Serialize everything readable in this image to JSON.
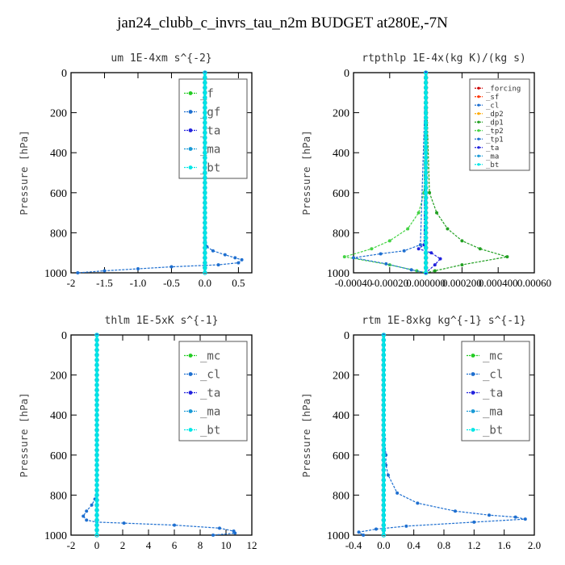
{
  "title": "jan24_clubb_c_invrs_tau_n2m  BUDGET at280E,-7N",
  "colors": {
    "forcing": "#cc0000",
    "sf": "#ff3300",
    "cl": "#1e6fd0",
    "dp2": "#ffaa00",
    "dp1": "#22a022",
    "tp2": "#44d344",
    "tp1": "#1e6fd0",
    "ta": "#2222dd",
    "ma": "#1a9ad6",
    "bt": "#00e6e6",
    "mc": "#22cc22",
    "f": "#22cc22",
    "gf": "#1e6fd0"
  },
  "chart_data": [
    {
      "type": "line",
      "title": "um   1E-4xm s^{-2}",
      "ylabel": "Pressure [hPa]",
      "xlim": [
        -2.0,
        0.7
      ],
      "ylim": [
        1000,
        0
      ],
      "xticks": [
        -2,
        -1.5,
        -1,
        -0.5,
        0,
        0.5
      ],
      "xtick_labels": [
        "-2",
        "-1.5",
        "-1.0",
        "-0.5",
        "0.0",
        "0.5"
      ],
      "yticks": [
        0,
        200,
        400,
        600,
        800,
        1000
      ],
      "legend": {
        "position": "top-right",
        "style": "large"
      },
      "series": [
        {
          "name": "_f",
          "color_key": "f",
          "x": [
            0,
            0
          ],
          "y": [
            0,
            1000
          ]
        },
        {
          "name": "_gf",
          "color_key": "gf",
          "x": [
            0,
            0,
            0.03,
            0.12,
            0.3,
            0.45,
            0.55,
            0.5,
            0.2,
            -0.5,
            -1.0,
            -1.5,
            -1.9
          ],
          "y": [
            0,
            840,
            870,
            890,
            910,
            925,
            935,
            950,
            960,
            970,
            980,
            990,
            1000
          ]
        },
        {
          "name": "_ta",
          "color_key": "ta",
          "x": [
            0,
            0
          ],
          "y": [
            0,
            1000
          ]
        },
        {
          "name": "_ma",
          "color_key": "ma",
          "x": [
            0,
            0
          ],
          "y": [
            0,
            1000
          ]
        },
        {
          "name": "_bt",
          "color_key": "bt",
          "x": [
            0,
            0
          ],
          "y": [
            0,
            1000
          ]
        }
      ]
    },
    {
      "type": "line",
      "title": "rtpthlp   1E-4x(kg K)/(kg s)",
      "ylabel": "Pressure [hPa]",
      "xlim": [
        -0.0004,
        0.0006
      ],
      "ylim": [
        1000,
        0
      ],
      "xticks": [
        -0.0004,
        -0.0002,
        0,
        0.0002,
        0.0004,
        0.0006
      ],
      "xtick_labels": [
        "-0.00040",
        "-0.00020",
        "0.000000",
        "0.000200",
        "0.000400",
        "0.00060"
      ],
      "yticks": [
        0,
        200,
        400,
        600,
        800,
        1000
      ],
      "legend": {
        "position": "top-right",
        "style": "small"
      },
      "series": [
        {
          "name": "_forcing",
          "color_key": "forcing",
          "x": [
            0,
            0
          ],
          "y": [
            0,
            1000
          ]
        },
        {
          "name": "_sf",
          "color_key": "sf",
          "x": [
            0,
            0
          ],
          "y": [
            0,
            1000
          ]
        },
        {
          "name": "_cl",
          "color_key": "cl",
          "x": [
            0,
            0
          ],
          "y": [
            0,
            1000
          ]
        },
        {
          "name": "_dp2",
          "color_key": "dp2",
          "x": [
            0,
            0
          ],
          "y": [
            0,
            1000
          ]
        },
        {
          "name": "_dp1",
          "color_key": "dp1",
          "x": [
            0,
            2e-05,
            6e-05,
            0.00012,
            0.0002,
            0.0003,
            0.00045,
            0.0002,
            5e-05,
            0
          ],
          "y": [
            0,
            600,
            700,
            780,
            840,
            880,
            920,
            960,
            990,
            1000
          ]
        },
        {
          "name": "_tp2",
          "color_key": "tp2",
          "x": [
            0,
            -1e-05,
            -4e-05,
            -0.0001,
            -0.0002,
            -0.0003,
            -0.00045,
            -0.0002,
            -5e-05,
            0
          ],
          "y": [
            0,
            600,
            700,
            780,
            840,
            880,
            920,
            960,
            990,
            1000
          ]
        },
        {
          "name": "_tp1",
          "color_key": "tp1",
          "x": [
            0,
            -3e-05,
            -0.00012,
            -0.00025,
            -0.0004,
            -0.00022,
            -8e-05,
            0
          ],
          "y": [
            0,
            860,
            890,
            905,
            925,
            955,
            985,
            1000
          ]
        },
        {
          "name": "_ta",
          "color_key": "ta",
          "x": [
            0,
            -1e-05,
            -4e-05,
            3e-05,
            8e-05,
            5e-05,
            0
          ],
          "y": [
            0,
            860,
            880,
            900,
            930,
            960,
            1000
          ]
        },
        {
          "name": "_ma",
          "color_key": "ma",
          "x": [
            0,
            0
          ],
          "y": [
            0,
            1000
          ]
        },
        {
          "name": "_bt",
          "color_key": "bt",
          "x": [
            0,
            0
          ],
          "y": [
            0,
            1000
          ]
        }
      ]
    },
    {
      "type": "line",
      "title": "thlm   1E-5xK s^{-1}",
      "ylabel": "Pressure [hPa]",
      "xlim": [
        -2,
        12
      ],
      "ylim": [
        1000,
        0
      ],
      "xticks": [
        -2,
        0,
        2,
        4,
        6,
        8,
        10,
        12
      ],
      "xtick_labels": [
        "-2",
        "0",
        "2",
        "4",
        "6",
        "8",
        "10",
        "12"
      ],
      "yticks": [
        0,
        200,
        400,
        600,
        800,
        1000
      ],
      "legend": {
        "position": "top-right",
        "style": "large"
      },
      "series": [
        {
          "name": "_mc",
          "color_key": "mc",
          "x": [
            0,
            0
          ],
          "y": [
            0,
            1000
          ]
        },
        {
          "name": "_cl",
          "color_key": "cl",
          "x": [
            0,
            0,
            -0.15,
            -0.4,
            -0.8,
            -1.05,
            -0.8,
            0,
            2.1,
            6,
            9.5,
            10.6,
            10.7,
            9.0
          ],
          "y": [
            0,
            780,
            820,
            850,
            880,
            905,
            925,
            935,
            940,
            950,
            965,
            980,
            990,
            1000
          ]
        },
        {
          "name": "_ta",
          "color_key": "ta",
          "x": [
            0,
            0
          ],
          "y": [
            0,
            1000
          ]
        },
        {
          "name": "_ma",
          "color_key": "ma",
          "x": [
            0,
            0
          ],
          "y": [
            0,
            1000
          ]
        },
        {
          "name": "_bt",
          "color_key": "bt",
          "x": [
            0,
            0
          ],
          "y": [
            0,
            1000
          ]
        }
      ]
    },
    {
      "type": "line",
      "title": "rtm   1E-8xkg kg^{-1} s^{-1}",
      "ylabel": "Pressure [hPa]",
      "xlim": [
        -0.4,
        2.0
      ],
      "ylim": [
        1000,
        0
      ],
      "xticks": [
        -0.4,
        0,
        0.4,
        0.8,
        1.2,
        1.6,
        2.0
      ],
      "xtick_labels": [
        "-0.4",
        "0.0",
        "0.4",
        "0.8",
        "1.2",
        "1.6",
        "2.0"
      ],
      "yticks": [
        0,
        200,
        400,
        600,
        800,
        1000
      ],
      "legend": {
        "position": "top-right",
        "style": "large"
      },
      "series": [
        {
          "name": "_mc",
          "color_key": "mc",
          "x": [
            0,
            0
          ],
          "y": [
            0,
            1000
          ]
        },
        {
          "name": "_cl",
          "color_key": "cl",
          "x": [
            0,
            0.01,
            0.03,
            0.03,
            0.06,
            0.18,
            0.45,
            0.95,
            1.4,
            1.75,
            1.88,
            1.2,
            0.3,
            -0.1,
            -0.33,
            -0.27
          ],
          "y": [
            0,
            520,
            600,
            650,
            700,
            790,
            840,
            880,
            900,
            910,
            920,
            935,
            955,
            970,
            985,
            1000
          ]
        },
        {
          "name": "_ta",
          "color_key": "ta",
          "x": [
            0,
            0
          ],
          "y": [
            0,
            1000
          ]
        },
        {
          "name": "_ma",
          "color_key": "ma",
          "x": [
            0,
            0
          ],
          "y": [
            0,
            1000
          ]
        },
        {
          "name": "_bt",
          "color_key": "bt",
          "x": [
            0,
            0
          ],
          "y": [
            0,
            1000
          ]
        }
      ]
    }
  ]
}
